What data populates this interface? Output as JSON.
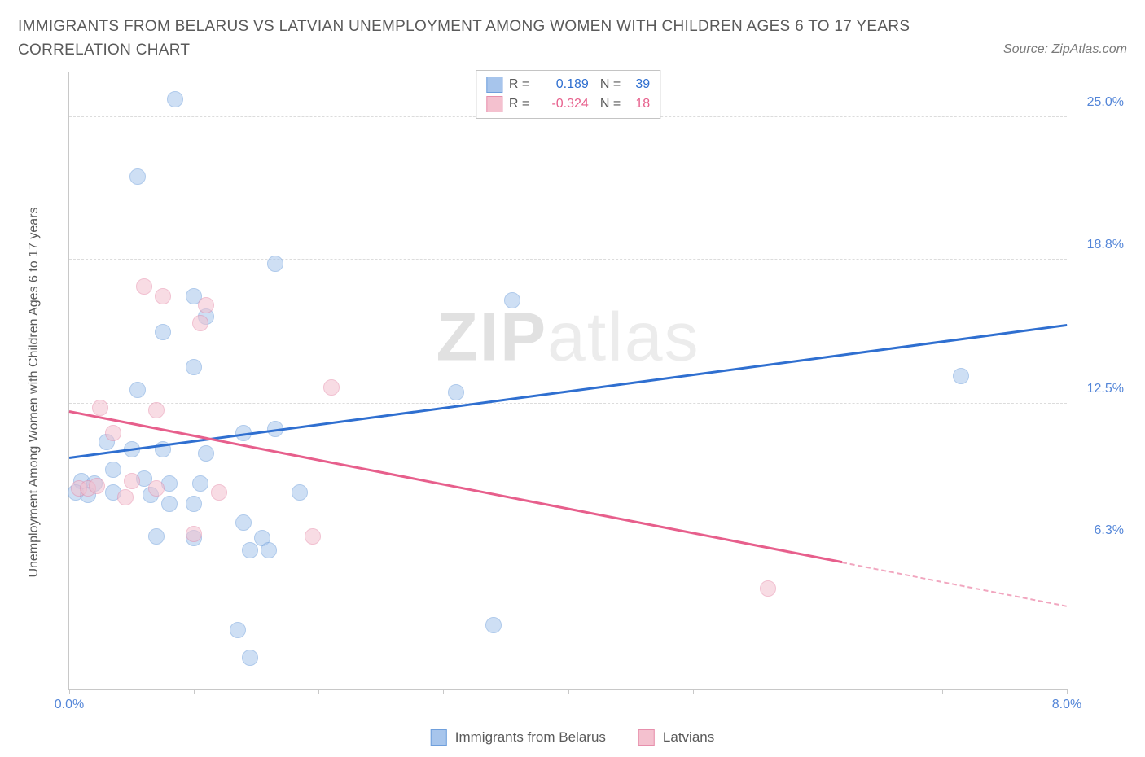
{
  "title": "IMMIGRANTS FROM BELARUS VS LATVIAN UNEMPLOYMENT AMONG WOMEN WITH CHILDREN AGES 6 TO 17 YEARS CORRELATION CHART",
  "source": "Source: ZipAtlas.com",
  "watermark_a": "ZIP",
  "watermark_b": "atlas",
  "chart": {
    "type": "scatter",
    "y_axis_label": "Unemployment Among Women with Children Ages 6 to 17 years",
    "xlim": [
      0.0,
      8.0
    ],
    "ylim": [
      0.0,
      27.0
    ],
    "x_ticks": [
      0.0,
      1.0,
      2.0,
      3.0,
      4.0,
      5.0,
      6.0,
      7.0,
      8.0
    ],
    "x_tick_labels": {
      "0": "0.0%",
      "8": "8.0%"
    },
    "y_ticks": [
      6.3,
      12.5,
      18.8,
      25.0
    ],
    "y_tick_labels": [
      "6.3%",
      "12.5%",
      "18.8%",
      "25.0%"
    ],
    "grid_color": "#dcdcdc",
    "axis_color": "#c8c8c8",
    "background_color": "#ffffff",
    "tick_label_color": "#5486d8",
    "marker_radius": 10,
    "marker_opacity": 0.55,
    "series": [
      {
        "name": "Immigrants from Belarus",
        "color_fill": "#a7c5ec",
        "color_stroke": "#6f9fdc",
        "trend_color": "#2f6fd0",
        "r": "0.189",
        "n": "39",
        "trend": {
          "x1": 0.0,
          "y1": 10.1,
          "x2": 8.0,
          "y2": 15.9,
          "dash_from_x": null
        },
        "points": [
          [
            0.85,
            25.8
          ],
          [
            0.55,
            22.4
          ],
          [
            1.65,
            18.6
          ],
          [
            1.0,
            17.2
          ],
          [
            1.1,
            16.3
          ],
          [
            0.75,
            15.6
          ],
          [
            1.0,
            14.1
          ],
          [
            3.55,
            17.0
          ],
          [
            0.55,
            13.1
          ],
          [
            7.15,
            13.7
          ],
          [
            1.4,
            11.2
          ],
          [
            1.65,
            11.4
          ],
          [
            3.1,
            13.0
          ],
          [
            0.3,
            10.8
          ],
          [
            0.5,
            10.5
          ],
          [
            0.75,
            10.5
          ],
          [
            1.1,
            10.3
          ],
          [
            0.1,
            9.1
          ],
          [
            0.2,
            9.0
          ],
          [
            0.35,
            9.6
          ],
          [
            0.05,
            8.6
          ],
          [
            0.15,
            8.5
          ],
          [
            0.35,
            8.6
          ],
          [
            0.6,
            9.2
          ],
          [
            0.8,
            9.0
          ],
          [
            1.05,
            9.0
          ],
          [
            0.65,
            8.5
          ],
          [
            0.8,
            8.1
          ],
          [
            1.0,
            8.1
          ],
          [
            1.85,
            8.6
          ],
          [
            1.4,
            7.3
          ],
          [
            1.45,
            6.1
          ],
          [
            0.7,
            6.7
          ],
          [
            1.0,
            6.6
          ],
          [
            1.55,
            6.6
          ],
          [
            1.6,
            6.1
          ],
          [
            1.35,
            2.6
          ],
          [
            1.45,
            1.4
          ],
          [
            3.4,
            2.8
          ]
        ]
      },
      {
        "name": "Latvians",
        "color_fill": "#f4c1cf",
        "color_stroke": "#e78fac",
        "trend_color": "#e75f8c",
        "r": "-0.324",
        "n": "18",
        "trend": {
          "x1": 0.0,
          "y1": 12.1,
          "x2": 8.0,
          "y2": 3.6,
          "dash_from_x": 6.2
        },
        "points": [
          [
            0.6,
            17.6
          ],
          [
            0.75,
            17.2
          ],
          [
            1.1,
            16.8
          ],
          [
            1.05,
            16.0
          ],
          [
            2.1,
            13.2
          ],
          [
            0.25,
            12.3
          ],
          [
            0.7,
            12.2
          ],
          [
            0.35,
            11.2
          ],
          [
            0.08,
            8.8
          ],
          [
            0.15,
            8.8
          ],
          [
            0.22,
            8.9
          ],
          [
            0.5,
            9.1
          ],
          [
            0.7,
            8.8
          ],
          [
            1.2,
            8.6
          ],
          [
            1.0,
            6.8
          ],
          [
            1.95,
            6.7
          ],
          [
            5.6,
            4.4
          ],
          [
            0.45,
            8.4
          ]
        ]
      }
    ]
  },
  "legend_top": {
    "r_label": "R =",
    "n_label": "N ="
  },
  "legend_bottom": {
    "items": [
      "Immigrants from Belarus",
      "Latvians"
    ]
  }
}
